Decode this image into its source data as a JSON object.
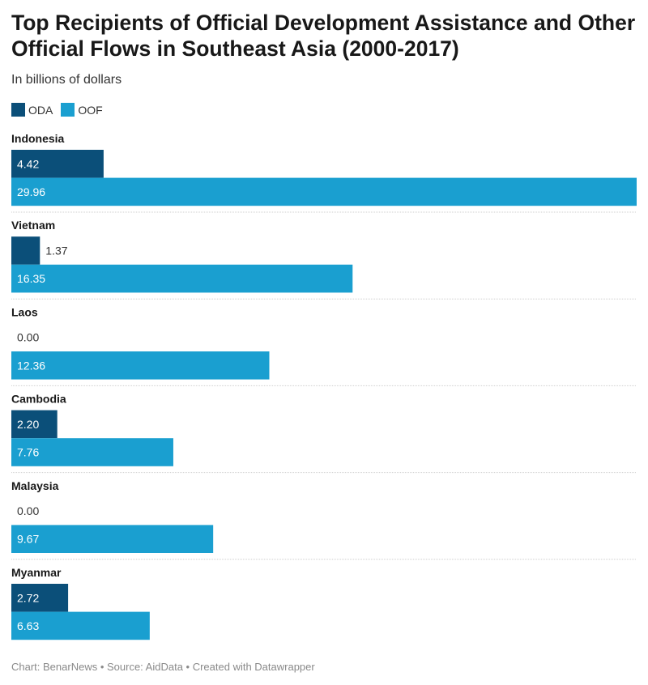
{
  "title": "Top Recipients of Official Development Assistance and Other Official Flows in Southeast Asia (2000-2017)",
  "subtitle": "In billions of dollars",
  "footer": "Chart: BenarNews • Source: AidData • Created with Datawrapper",
  "colors": {
    "oda": "#0b4f79",
    "oof": "#1a9fd0"
  },
  "chart_data": {
    "type": "bar",
    "orientation": "horizontal",
    "categories": [
      "Indonesia",
      "Vietnam",
      "Laos",
      "Cambodia",
      "Malaysia",
      "Myanmar"
    ],
    "series": [
      {
        "name": "ODA",
        "values": [
          4.42,
          1.37,
          0.0,
          2.2,
          0.0,
          2.72
        ],
        "labels": [
          "4.42",
          "1.37",
          "0.00",
          "2.20",
          "0.00",
          "2.72"
        ]
      },
      {
        "name": "OOF",
        "values": [
          29.96,
          16.35,
          12.36,
          7.76,
          9.67,
          6.63
        ],
        "labels": [
          "29.96",
          "16.35",
          "12.36",
          "7.76",
          "9.67",
          "6.63"
        ]
      }
    ],
    "xlim": [
      0,
      29.96
    ],
    "legend_position": "top-left",
    "grid": false
  }
}
